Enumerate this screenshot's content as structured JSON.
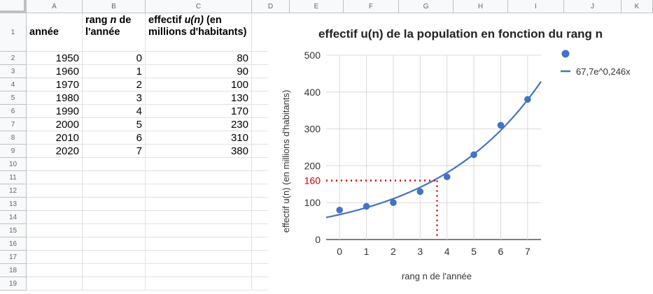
{
  "columns": [
    "A",
    "B",
    "C",
    "D",
    "E",
    "F",
    "G",
    "H",
    "I",
    "J",
    "K"
  ],
  "rows": [
    "1",
    "2",
    "3",
    "4",
    "5",
    "6",
    "7",
    "8",
    "9",
    "10",
    "11",
    "12",
    "13",
    "14",
    "15",
    "16",
    "17",
    "18",
    "19"
  ],
  "headers": {
    "annee": "année",
    "rang_pre": "rang ",
    "rang_n": "n",
    "rang_post": " de l'année",
    "eff_pre": "effectif ",
    "eff_u": "u(n)",
    "eff_post": " (en millions d'habitants)"
  },
  "table": [
    {
      "annee": "1950",
      "rang": "0",
      "effectif": "80"
    },
    {
      "annee": "1960",
      "rang": "1",
      "effectif": "90"
    },
    {
      "annee": "1970",
      "rang": "2",
      "effectif": "100"
    },
    {
      "annee": "1980",
      "rang": "3",
      "effectif": "130"
    },
    {
      "annee": "1990",
      "rang": "4",
      "effectif": "170"
    },
    {
      "annee": "2000",
      "rang": "5",
      "effectif": "230"
    },
    {
      "annee": "2010",
      "rang": "6",
      "effectif": "310"
    },
    {
      "annee": "2020",
      "rang": "7",
      "effectif": "380"
    }
  ],
  "chart_data": {
    "type": "scatter",
    "title": "effectif u(n) de la population en fonction du rang n",
    "xlabel": "rang n de l'année",
    "ylabel": "effectif u(n) (en millions d'habitants)",
    "x": [
      0,
      1,
      2,
      3,
      4,
      5,
      6,
      7
    ],
    "y": [
      80,
      90,
      100,
      130,
      170,
      230,
      310,
      380
    ],
    "xlim": [
      -0.5,
      7.5
    ],
    "ylim": [
      0,
      500
    ],
    "xticks": [
      "0",
      "1",
      "2",
      "3",
      "4",
      "5",
      "6",
      "7"
    ],
    "yticks": [
      "0",
      "100",
      "200",
      "300",
      "400",
      "500"
    ],
    "grid": true,
    "legend_position": "right",
    "point_color": "#4472c4",
    "trendline": {
      "a": 67.7,
      "b": 0.246,
      "label": "67,7e^0,246x",
      "color": "#4472c4"
    },
    "annotation": {
      "y_value": 160,
      "x_value": 3.63,
      "label": "160",
      "color": "#cc0000"
    }
  }
}
